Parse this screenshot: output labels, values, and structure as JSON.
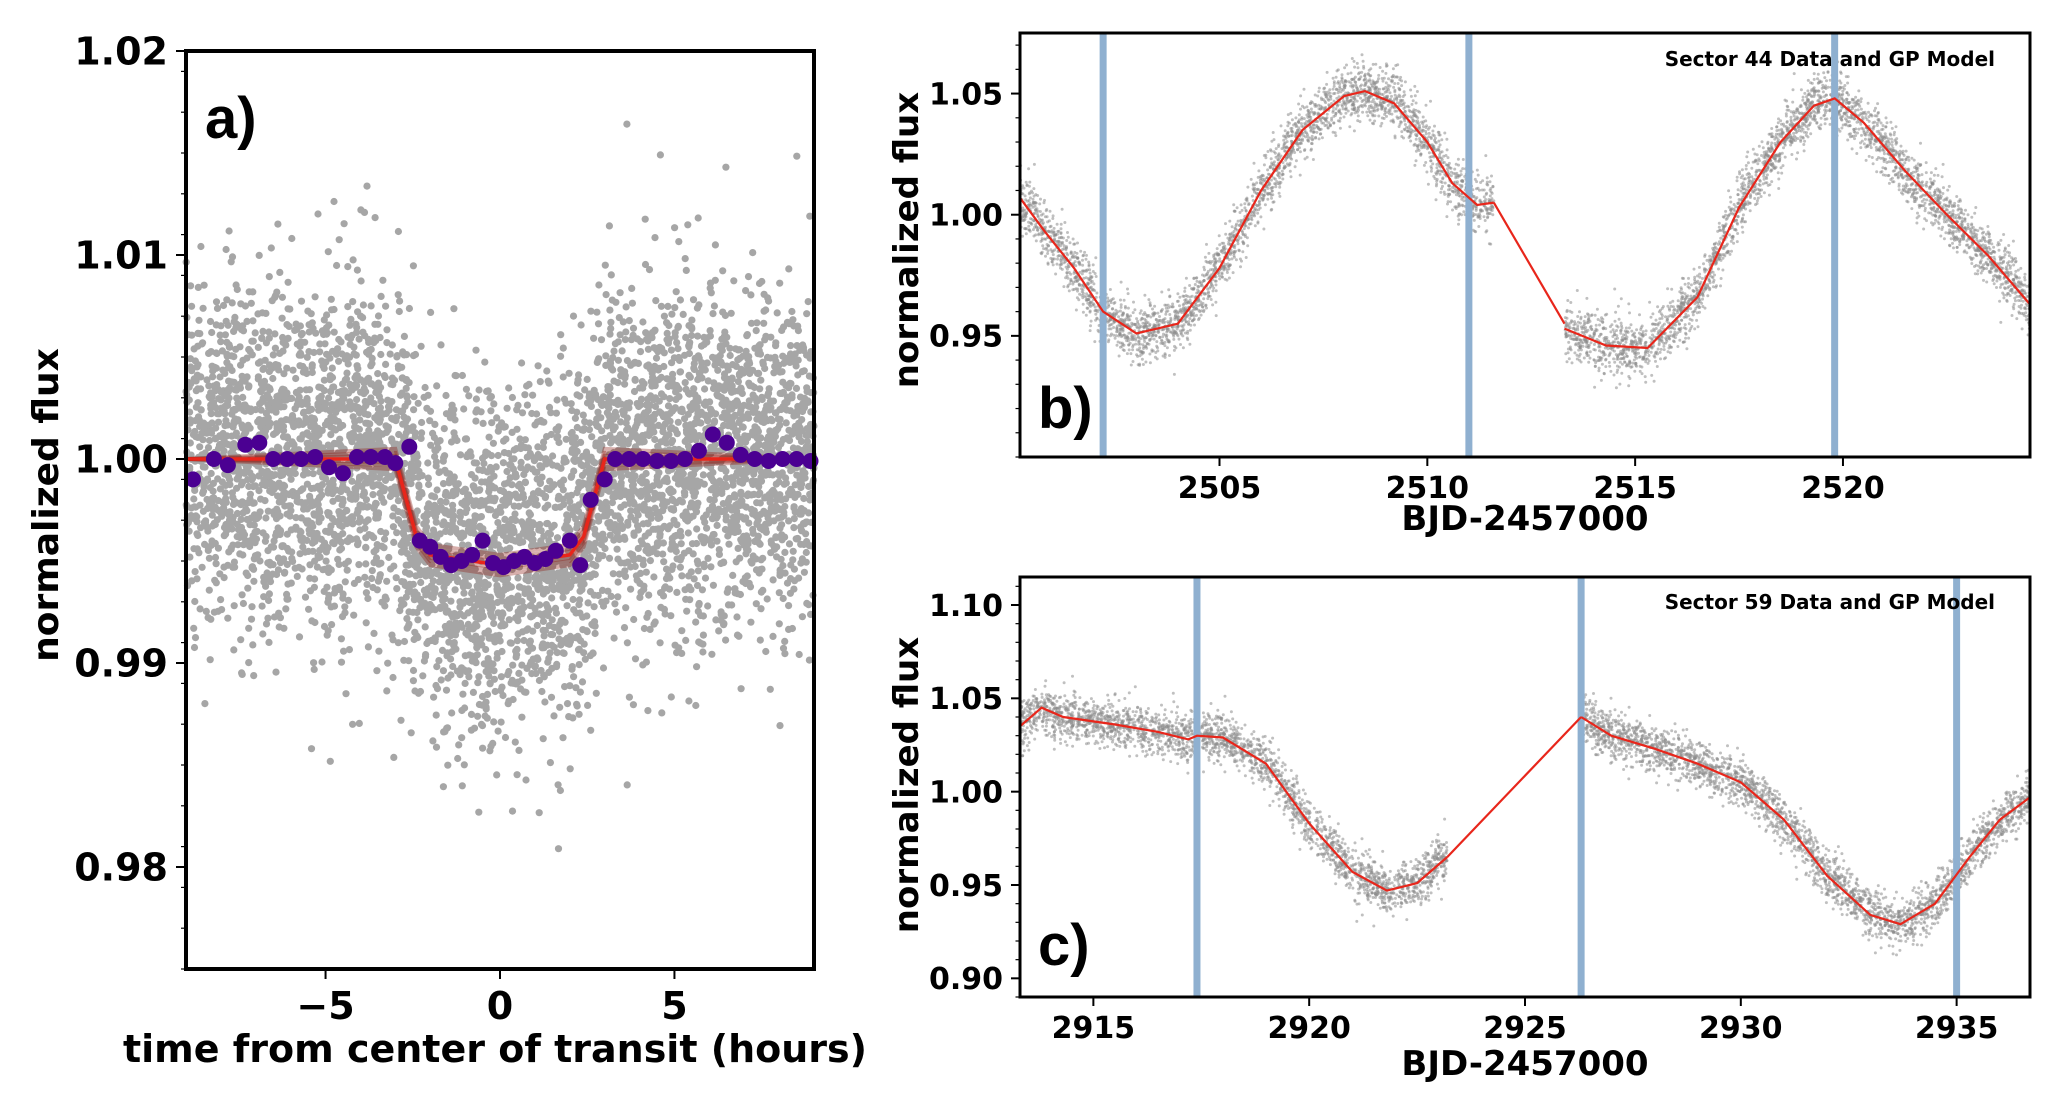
{
  "colors": {
    "data_points": "#a6a6a6",
    "binned_points": "#4b0092",
    "model_line": "#e8261b",
    "model_band": "#8b1a10",
    "transit_marker": "#8fb0d0",
    "axes": "#000000"
  },
  "chart_data": [
    {
      "id": "a",
      "type": "scatter",
      "panel_label": "a)",
      "title": "",
      "xlabel": "time from center of transit (hours)",
      "ylabel": "normalized flux",
      "xlim": [
        -9,
        9
      ],
      "ylim": [
        0.975,
        1.02
      ],
      "xticks": [
        -5,
        0,
        5
      ],
      "xtick_labels": [
        "−5",
        "0",
        "5"
      ],
      "yticks": [
        0.98,
        0.99,
        1.0,
        1.01,
        1.02
      ],
      "ytick_labels": [
        "0.98",
        "0.99",
        "1.00",
        "1.01",
        "1.02"
      ],
      "series": [
        {
          "kind": "scatter-cloud",
          "color": "gray"
        },
        {
          "kind": "binned",
          "x": [
            -8.8,
            -8.2,
            -7.8,
            -7.3,
            -6.9,
            -6.5,
            -6.1,
            -5.7,
            -5.3,
            -4.9,
            -4.5,
            -4.1,
            -3.7,
            -3.3,
            -3.0,
            -2.6,
            -2.3,
            -2.0,
            -1.7,
            -1.4,
            -1.1,
            -0.8,
            -0.5,
            -0.2,
            0.1,
            0.4,
            0.7,
            1.0,
            1.3,
            1.6,
            2.0,
            2.3,
            2.6,
            3.0,
            3.3,
            3.7,
            4.1,
            4.5,
            4.9,
            5.3,
            5.7,
            6.1,
            6.5,
            6.9,
            7.3,
            7.7,
            8.1,
            8.5,
            8.9
          ],
          "y": [
            0.999,
            1.0,
            0.9997,
            1.0007,
            1.0008,
            1.0,
            1.0,
            1.0,
            1.0001,
            0.9996,
            0.9993,
            1.0001,
            1.0001,
            1.0001,
            0.9998,
            1.0006,
            0.996,
            0.9957,
            0.9952,
            0.9948,
            0.995,
            0.9953,
            0.996,
            0.9949,
            0.9947,
            0.995,
            0.9952,
            0.9949,
            0.9951,
            0.9955,
            0.996,
            0.9948,
            0.998,
            0.999,
            1.0,
            1.0,
            1.0,
            0.9999,
            0.9999,
            1.0,
            1.0004,
            1.0012,
            1.0008,
            1.0002,
            1.0,
            0.9999,
            1.0,
            1.0,
            0.9999
          ]
        },
        {
          "kind": "model",
          "name": "",
          "x": [
            -9,
            -3.0,
            -2.4,
            -2.0,
            0,
            2.0,
            2.4,
            3.0,
            9
          ],
          "y": [
            1.0,
            1.0,
            0.9962,
            0.9953,
            0.9948,
            0.9953,
            0.9962,
            1.0,
            1.0
          ]
        }
      ]
    },
    {
      "id": "b",
      "type": "scatter",
      "panel_label": "b)",
      "title": "Sector 44 Data and GP Model",
      "xlabel": "BJD-2457000",
      "ylabel": "normalized flux",
      "xlim": [
        2500.2,
        2524.5
      ],
      "ylim": [
        0.9,
        1.075
      ],
      "xticks": [
        2505,
        2510,
        2515,
        2520
      ],
      "xtick_labels": [
        "2505",
        "2510",
        "2515",
        "2520"
      ],
      "yticks": [
        0.95,
        1.0,
        1.05
      ],
      "ytick_labels": [
        "0.95",
        "1.00",
        "1.05"
      ],
      "transit_markers": [
        2502.2,
        2511.0,
        2519.8
      ],
      "series": [
        {
          "kind": "model",
          "name": "",
          "segments": [
            {
              "x": [
                2500.2,
                2500.8,
                2501.5,
                2502.2,
                2503.0,
                2504.0,
                2505.0,
                2506.0,
                2507.0,
                2508.0,
                2508.5,
                2509.2,
                2510.0,
                2510.6,
                2511.2,
                2511.6
              ],
              "y": [
                1.007,
                0.993,
                0.978,
                0.96,
                0.951,
                0.955,
                0.978,
                1.01,
                1.035,
                1.049,
                1.051,
                1.046,
                1.03,
                1.013,
                1.004,
                1.005
              ]
            },
            {
              "x": [
                2511.6,
                2513.3
              ],
              "y": [
                1.005,
                0.955
              ]
            },
            {
              "x": [
                2513.3,
                2514.3,
                2515.3,
                2516.5,
                2517.5,
                2518.5,
                2519.3,
                2519.8,
                2520.5,
                2521.5,
                2522.5,
                2523.5,
                2524.5
              ],
              "y": [
                0.953,
                0.946,
                0.945,
                0.966,
                1.003,
                1.03,
                1.045,
                1.048,
                1.038,
                1.018,
                1.0,
                0.983,
                0.963
              ]
            }
          ]
        }
      ]
    },
    {
      "id": "c",
      "type": "scatter",
      "panel_label": "c)",
      "title": "Sector 59 Data and GP Model",
      "xlabel": "BJD-2457000",
      "ylabel": "normalized flux",
      "xlim": [
        2913.3,
        2936.7
      ],
      "ylim": [
        0.89,
        1.115
      ],
      "xticks": [
        2915,
        2920,
        2925,
        2930,
        2935
      ],
      "xtick_labels": [
        "2915",
        "2920",
        "2925",
        "2930",
        "2935"
      ],
      "yticks": [
        0.9,
        0.95,
        1.0,
        1.05,
        1.1
      ],
      "ytick_labels": [
        "0.90",
        "0.95",
        "1.00",
        "1.05",
        "1.10"
      ],
      "transit_markers": [
        2917.4,
        2926.3,
        2935.0
      ],
      "series": [
        {
          "kind": "model",
          "name": "",
          "segments": [
            {
              "x": [
                2913.3,
                2913.8,
                2914.3,
                2915.5,
                2916.5,
                2917.2,
                2917.4,
                2918.0,
                2919.0,
                2920.0,
                2921.0,
                2921.8,
                2922.5,
                2923.2
              ],
              "y": [
                1.035,
                1.045,
                1.04,
                1.036,
                1.032,
                1.028,
                1.03,
                1.029,
                1.015,
                0.983,
                0.957,
                0.947,
                0.951,
                0.965
              ]
            },
            {
              "x": [
                2923.2,
                2926.3
              ],
              "y": [
                0.965,
                1.04
              ]
            },
            {
              "x": [
                2926.3,
                2927.0,
                2928.0,
                2929.0,
                2930.0,
                2931.0,
                2932.0,
                2933.0,
                2933.7,
                2934.5,
                2935.3,
                2936.0,
                2936.7
              ],
              "y": [
                1.04,
                1.03,
                1.023,
                1.015,
                1.005,
                0.985,
                0.955,
                0.934,
                0.929,
                0.94,
                0.965,
                0.985,
                0.997
              ]
            }
          ]
        }
      ]
    }
  ]
}
